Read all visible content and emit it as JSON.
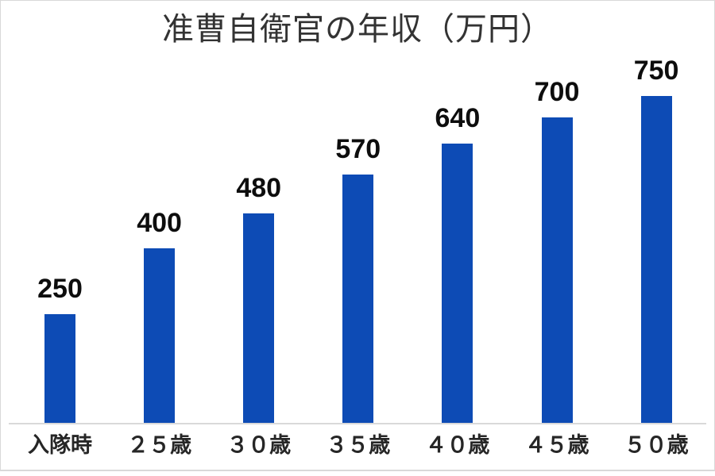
{
  "chart_data": {
    "type": "bar",
    "title": "准曹自衛官の年収（万円）",
    "categories": [
      "入隊時",
      "２５歳",
      "３０歳",
      "３５歳",
      "４０歳",
      "４５歳",
      "５０歳"
    ],
    "values": [
      250,
      400,
      480,
      570,
      640,
      700,
      750
    ],
    "xlabel": "",
    "ylabel": "",
    "ylim": [
      0,
      800
    ],
    "grid": false,
    "legend": false,
    "value_labels_shown": true,
    "colors": {
      "bar": "#0d4bb5",
      "value_label": "#0d0d0d",
      "category_label": "#262626",
      "title": "#333333",
      "axis_line": "#d9d9d9",
      "background": "#ffffff"
    }
  }
}
